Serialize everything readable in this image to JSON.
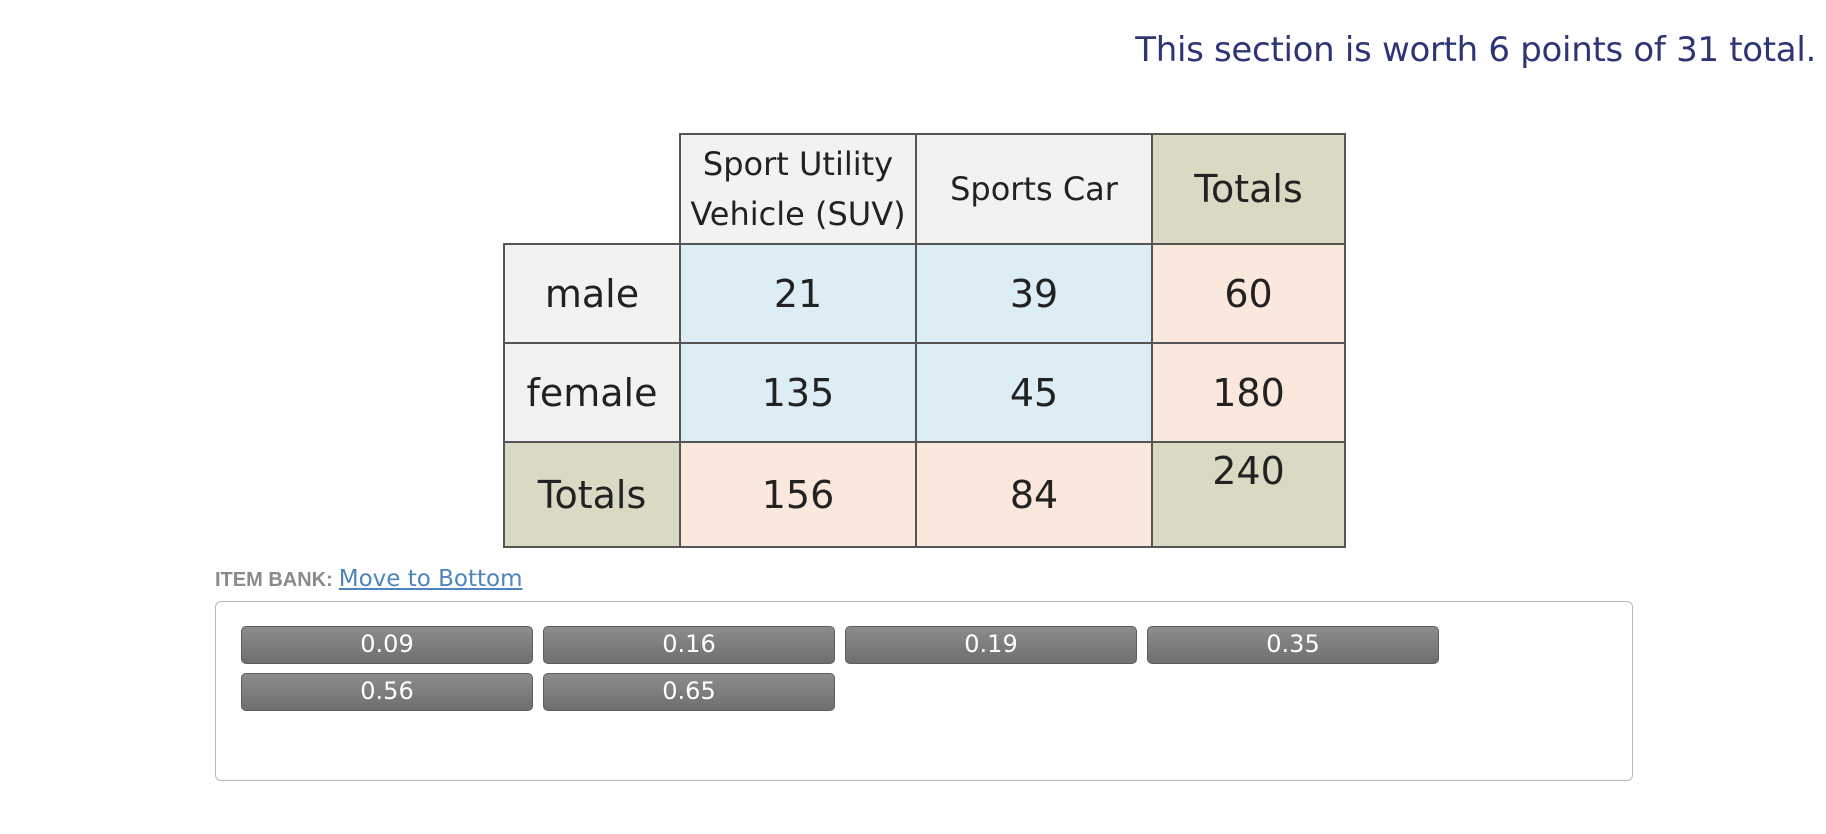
{
  "header": {
    "section_worth": "This section is worth 6 points of 31 total."
  },
  "table": {
    "col_headers": [
      "Sport Utility Vehicle (SUV)",
      "Sports Car",
      "Totals"
    ],
    "col_header_lines": [
      [
        "Sport Utility",
        "Vehicle (SUV)"
      ]
    ],
    "rows": [
      {
        "label": "male",
        "values": [
          "21",
          "39",
          "60"
        ]
      },
      {
        "label": "female",
        "values": [
          "135",
          "45",
          "180"
        ]
      },
      {
        "label": "Totals",
        "values": [
          "156",
          "84",
          "240"
        ]
      }
    ]
  },
  "item_bank": {
    "label": "ITEM BANK:",
    "move_link": "Move to Bottom",
    "items": [
      "0.09",
      "0.16",
      "0.19",
      "0.35",
      "0.56",
      "0.65"
    ]
  },
  "colors": {
    "title": "#2e3577",
    "header_light": "#f2f2f2",
    "totals_header": "#dad9c4",
    "cell_blue": "#ddedf5",
    "cell_peach": "#fbe8dc",
    "link": "#4f84bd",
    "chip": "#7a7a7a"
  }
}
